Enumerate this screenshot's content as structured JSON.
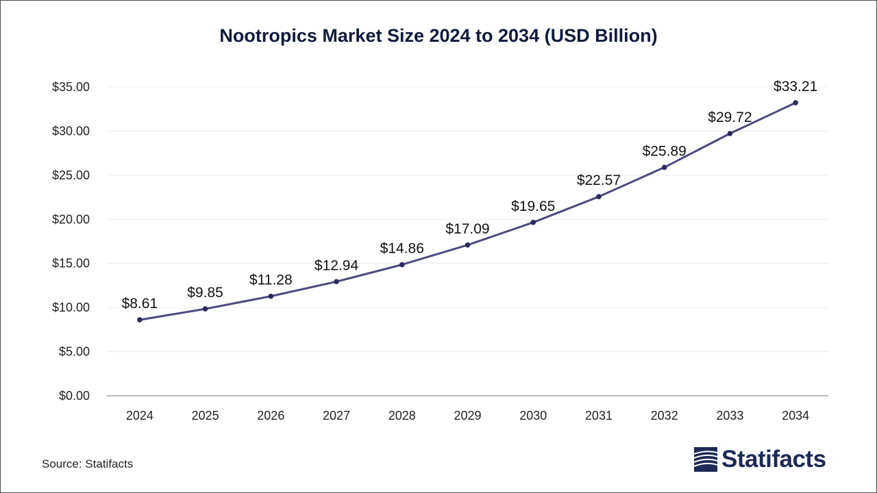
{
  "chart_data": {
    "type": "line",
    "title": "Nootropics Market Size 2024 to 2034 (USD Billion)",
    "categories": [
      "2024",
      "2025",
      "2026",
      "2027",
      "2028",
      "2029",
      "2030",
      "2031",
      "2032",
      "2033",
      "2034"
    ],
    "values": [
      8.61,
      9.85,
      11.28,
      12.94,
      14.86,
      17.09,
      19.65,
      22.57,
      25.89,
      29.72,
      33.21
    ],
    "data_labels": [
      "$8.61",
      "$9.85",
      "$11.28",
      "$12.94",
      "$14.86",
      "$17.09",
      "$19.65",
      "$22.57",
      "$25.89",
      "$29.72",
      "$33.21"
    ],
    "y_ticks": [
      0,
      5,
      10,
      15,
      20,
      25,
      30,
      35
    ],
    "y_tick_labels": [
      "$0.00",
      "$5.00",
      "$10.00",
      "$15.00",
      "$20.00",
      "$25.00",
      "$30.00",
      "$35.00"
    ],
    "ylim": [
      0,
      35
    ],
    "xlabel": "",
    "ylabel": "",
    "grid": true,
    "line_color": "#4b4a7e",
    "marker_color": "#2b2a5c"
  },
  "footer": {
    "source": "Source: Statifacts",
    "brand": "Statifacts"
  }
}
